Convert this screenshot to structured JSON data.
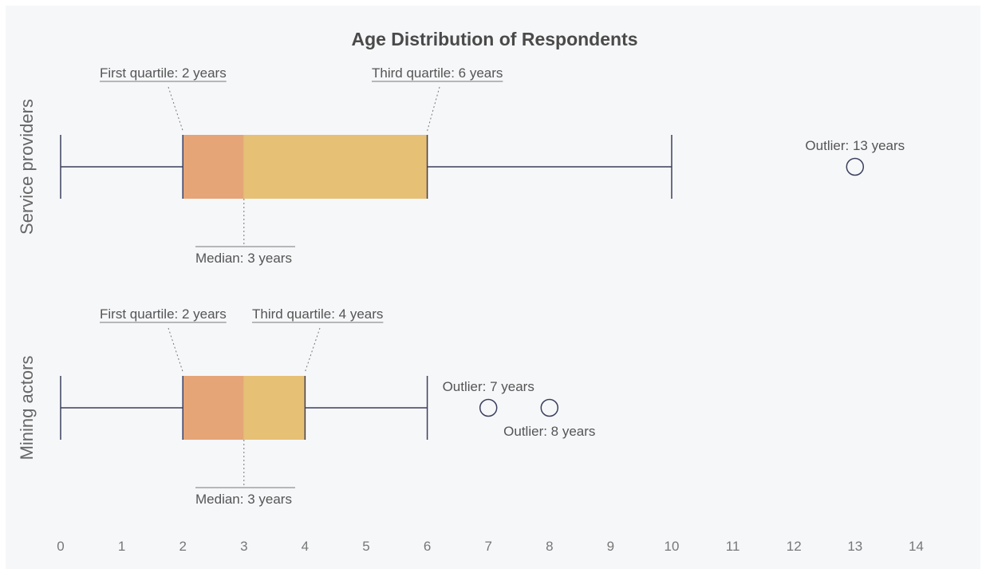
{
  "chart_data": {
    "type": "boxplot",
    "title": "Age Distribution of Respondents",
    "xlabel": "",
    "ylabel": "",
    "xlim": [
      0,
      14
    ],
    "x_ticks": [
      "0",
      "1",
      "2",
      "3",
      "4",
      "5",
      "6",
      "7",
      "8",
      "9",
      "10",
      "11",
      "12",
      "13",
      "14"
    ],
    "grid": false,
    "colors": {
      "background": "#f6f7f9",
      "lower_box": "#e5a577",
      "upper_box": "#e6c074",
      "line": "#3b3f5c",
      "text": "#555555",
      "title": "#4a4a4a",
      "tick": "#777777"
    },
    "series": [
      {
        "name": "Service providers",
        "min": 0,
        "q1": 2,
        "median": 3,
        "q3": 6,
        "max": 10,
        "outliers": [
          13
        ],
        "annotations": {
          "q1": "First quartile: 2 years",
          "q3": "Third quartile: 6 years",
          "median": "Median: 3 years",
          "outliers": [
            "Outlier: 13 years"
          ]
        }
      },
      {
        "name": "Mining actors",
        "min": 0,
        "q1": 2,
        "median": 3,
        "q3": 4,
        "max": 6,
        "outliers": [
          7,
          8
        ],
        "annotations": {
          "q1": "First quartile: 2 years",
          "q3": "Third quartile: 4 years",
          "median": "Median: 3 years",
          "outliers": [
            "Outlier: 7 years",
            "Outlier: 8 years"
          ]
        }
      }
    ]
  }
}
